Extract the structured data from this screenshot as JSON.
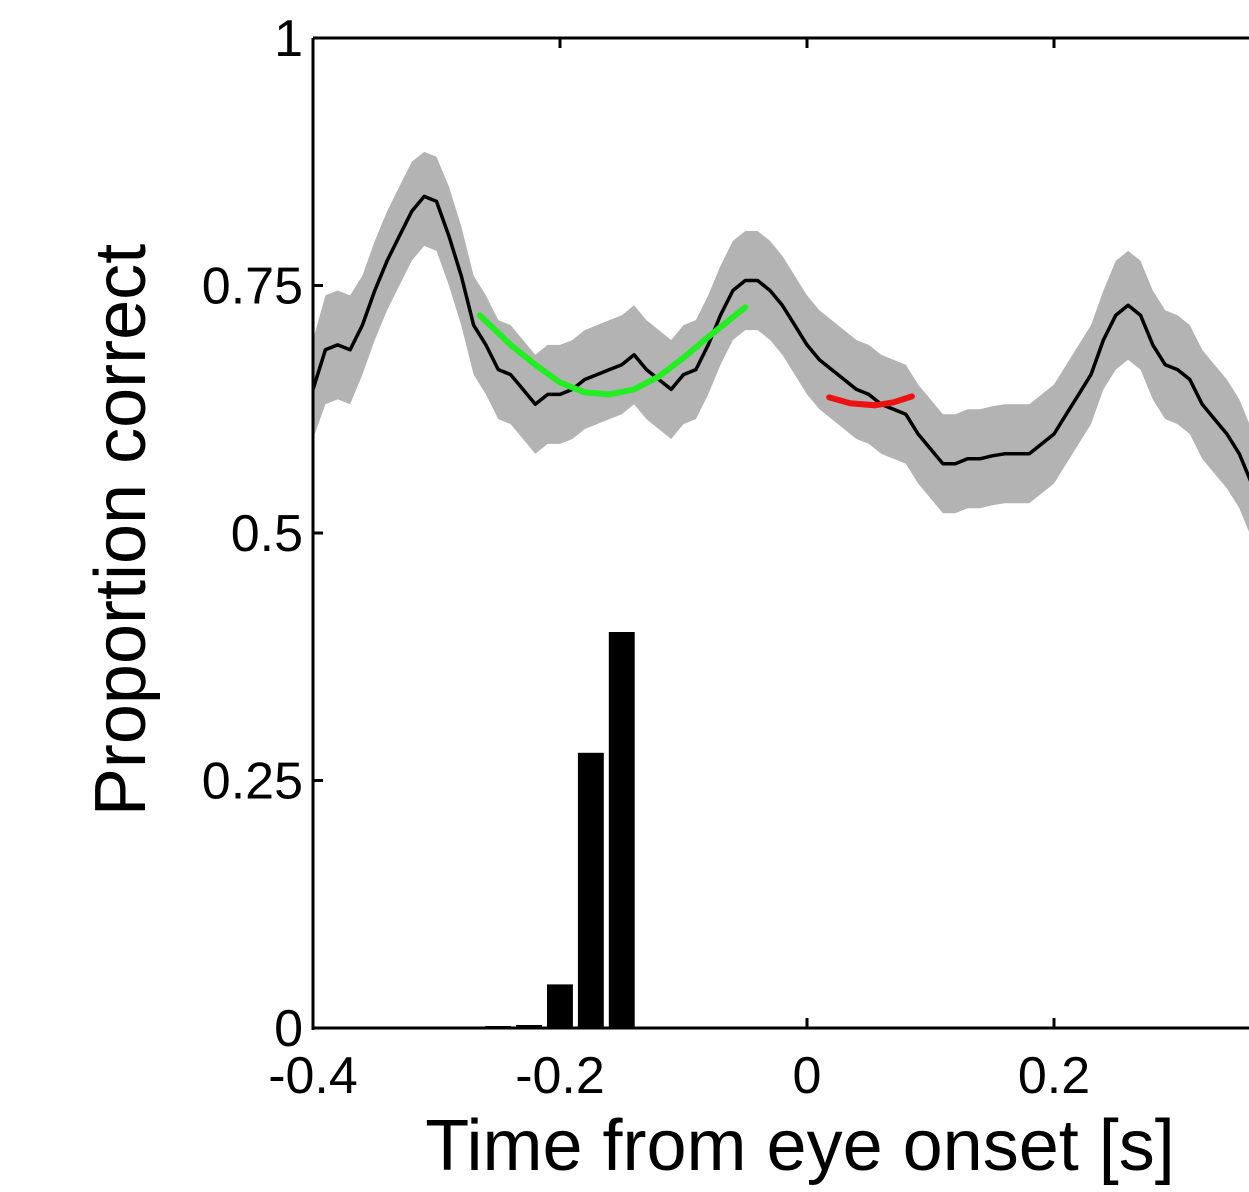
{
  "chart_data": {
    "type": "line",
    "xlabel": "Time from eye onset [s]",
    "ylabel": "Proportion correct",
    "xlim": [
      -0.4,
      0.36
    ],
    "ylim": [
      0,
      1
    ],
    "xticks": [
      -0.4,
      -0.2,
      0,
      0.2
    ],
    "xtick_labels": [
      "-0.4",
      "-0.2",
      "0",
      "0.2"
    ],
    "yticks": [
      0,
      0.25,
      0.5,
      0.75,
      1
    ],
    "ytick_labels": [
      "0",
      "0.25",
      "0.5",
      "0.75",
      "1"
    ],
    "grid": false,
    "legend": null,
    "mean_line": {
      "color": "#000000",
      "x": [
        -0.4,
        -0.39,
        -0.38,
        -0.37,
        -0.36,
        -0.35,
        -0.34,
        -0.33,
        -0.32,
        -0.31,
        -0.3,
        -0.29,
        -0.28,
        -0.27,
        -0.26,
        -0.25,
        -0.24,
        -0.23,
        -0.22,
        -0.21,
        -0.2,
        -0.19,
        -0.18,
        -0.17,
        -0.16,
        -0.15,
        -0.14,
        -0.13,
        -0.12,
        -0.11,
        -0.1,
        -0.09,
        -0.08,
        -0.07,
        -0.06,
        -0.05,
        -0.04,
        -0.03,
        -0.02,
        -0.01,
        0.0,
        0.01,
        0.02,
        0.03,
        0.04,
        0.05,
        0.06,
        0.07,
        0.08,
        0.09,
        0.1,
        0.11,
        0.12,
        0.13,
        0.14,
        0.15,
        0.16,
        0.17,
        0.18,
        0.19,
        0.2,
        0.21,
        0.22,
        0.23,
        0.24,
        0.25,
        0.26,
        0.27,
        0.28,
        0.29,
        0.3,
        0.31,
        0.32,
        0.33,
        0.34,
        0.35,
        0.36
      ],
      "y": [
        0.645,
        0.685,
        0.69,
        0.685,
        0.71,
        0.745,
        0.775,
        0.8,
        0.825,
        0.84,
        0.835,
        0.8,
        0.76,
        0.71,
        0.69,
        0.665,
        0.66,
        0.645,
        0.63,
        0.64,
        0.64,
        0.645,
        0.655,
        0.66,
        0.665,
        0.67,
        0.68,
        0.665,
        0.655,
        0.645,
        0.66,
        0.665,
        0.69,
        0.72,
        0.745,
        0.755,
        0.755,
        0.745,
        0.73,
        0.71,
        0.69,
        0.675,
        0.665,
        0.655,
        0.645,
        0.64,
        0.63,
        0.625,
        0.62,
        0.6,
        0.585,
        0.57,
        0.57,
        0.575,
        0.575,
        0.578,
        0.58,
        0.58,
        0.58,
        0.59,
        0.6,
        0.62,
        0.64,
        0.66,
        0.695,
        0.72,
        0.73,
        0.72,
        0.69,
        0.67,
        0.665,
        0.655,
        0.63,
        0.615,
        0.6,
        0.58,
        0.55
      ]
    },
    "confidence_band": {
      "color": "#b3b3b3",
      "upper": [
        0.695,
        0.74,
        0.745,
        0.74,
        0.76,
        0.795,
        0.825,
        0.85,
        0.875,
        0.885,
        0.88,
        0.85,
        0.81,
        0.76,
        0.74,
        0.715,
        0.71,
        0.695,
        0.68,
        0.69,
        0.69,
        0.695,
        0.705,
        0.71,
        0.715,
        0.72,
        0.73,
        0.715,
        0.705,
        0.695,
        0.71,
        0.715,
        0.74,
        0.77,
        0.795,
        0.805,
        0.805,
        0.795,
        0.78,
        0.76,
        0.74,
        0.725,
        0.715,
        0.705,
        0.695,
        0.69,
        0.68,
        0.675,
        0.67,
        0.65,
        0.635,
        0.62,
        0.62,
        0.625,
        0.625,
        0.628,
        0.63,
        0.63,
        0.63,
        0.64,
        0.65,
        0.67,
        0.69,
        0.71,
        0.745,
        0.775,
        0.785,
        0.775,
        0.745,
        0.725,
        0.72,
        0.71,
        0.685,
        0.67,
        0.655,
        0.635,
        0.605
      ],
      "lower": [
        0.595,
        0.63,
        0.635,
        0.63,
        0.66,
        0.695,
        0.725,
        0.75,
        0.775,
        0.79,
        0.785,
        0.75,
        0.71,
        0.66,
        0.64,
        0.615,
        0.61,
        0.595,
        0.58,
        0.59,
        0.59,
        0.595,
        0.605,
        0.61,
        0.615,
        0.62,
        0.63,
        0.615,
        0.605,
        0.595,
        0.61,
        0.615,
        0.64,
        0.67,
        0.695,
        0.705,
        0.705,
        0.695,
        0.68,
        0.66,
        0.64,
        0.625,
        0.615,
        0.605,
        0.595,
        0.59,
        0.58,
        0.575,
        0.57,
        0.55,
        0.535,
        0.52,
        0.52,
        0.525,
        0.525,
        0.528,
        0.53,
        0.53,
        0.53,
        0.54,
        0.55,
        0.57,
        0.59,
        0.61,
        0.645,
        0.665,
        0.675,
        0.665,
        0.635,
        0.615,
        0.61,
        0.6,
        0.575,
        0.56,
        0.545,
        0.525,
        0.495
      ]
    },
    "fits": [
      {
        "color": "#22ee22",
        "x": [
          -0.265,
          -0.24,
          -0.22,
          -0.2,
          -0.18,
          -0.16,
          -0.14,
          -0.12,
          -0.1,
          -0.08,
          -0.05
        ],
        "y": [
          0.72,
          0.69,
          0.67,
          0.652,
          0.642,
          0.64,
          0.645,
          0.658,
          0.677,
          0.698,
          0.728
        ]
      },
      {
        "color": "#ee1111",
        "x": [
          0.018,
          0.035,
          0.055,
          0.07,
          0.085
        ],
        "y": [
          0.637,
          0.631,
          0.629,
          0.632,
          0.638
        ]
      }
    ],
    "histogram": {
      "color": "#000000",
      "bar_width": 0.021,
      "x": [
        -0.25,
        -0.225,
        -0.2,
        -0.175,
        -0.15,
        -0.125
      ],
      "values": [
        0.002,
        0.003,
        0.044,
        0.278,
        0.4,
        0.001
      ]
    }
  }
}
